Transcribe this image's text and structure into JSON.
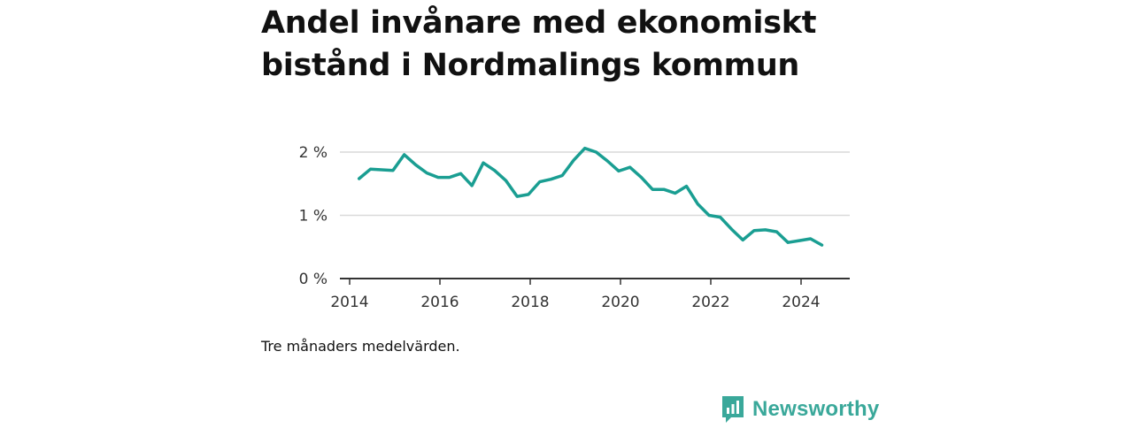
{
  "title": "Andel invånare med ekonomiskt bistånd i Nordmalings kommun",
  "caption": "Tre månaders medelvärden.",
  "brand": {
    "name": "Newsworthy",
    "icon": "newsworthy-logo-icon",
    "color": "#3aa89a"
  },
  "colors": {
    "line": "#1a9e92",
    "grid": "#d9d9d9",
    "axis": "#333333",
    "text": "#333333"
  },
  "chart_data": {
    "type": "line",
    "title": "Andel invånare med ekonomiskt bistånd i Nordmalings kommun",
    "xlabel": "",
    "ylabel": "",
    "xlim": [
      2013.7,
      2025.1
    ],
    "ylim": [
      0,
      2
    ],
    "x_ticks": [
      2014,
      2016,
      2018,
      2020,
      2022,
      2024
    ],
    "y_ticks": [
      0,
      1,
      2
    ],
    "y_tick_labels": [
      "0 %",
      "1 %",
      "2 %"
    ],
    "grid": true,
    "series": [
      {
        "values": [
          [
            2014.21,
            1.58
          ],
          [
            2014.46,
            1.73
          ],
          [
            2014.71,
            1.72
          ],
          [
            2014.96,
            1.71
          ],
          [
            2015.21,
            1.96
          ],
          [
            2015.46,
            1.8
          ],
          [
            2015.71,
            1.67
          ],
          [
            2015.96,
            1.6
          ],
          [
            2016.21,
            1.6
          ],
          [
            2016.46,
            1.66
          ],
          [
            2016.71,
            1.47
          ],
          [
            2016.96,
            1.83
          ],
          [
            2017.21,
            1.71
          ],
          [
            2017.46,
            1.55
          ],
          [
            2017.71,
            1.3
          ],
          [
            2017.96,
            1.33
          ],
          [
            2018.21,
            1.53
          ],
          [
            2018.46,
            1.57
          ],
          [
            2018.71,
            1.63
          ],
          [
            2018.96,
            1.87
          ],
          [
            2019.21,
            2.06
          ],
          [
            2019.46,
            2.0
          ],
          [
            2019.71,
            1.86
          ],
          [
            2019.96,
            1.7
          ],
          [
            2020.21,
            1.76
          ],
          [
            2020.46,
            1.6
          ],
          [
            2020.71,
            1.41
          ],
          [
            2020.96,
            1.41
          ],
          [
            2021.21,
            1.35
          ],
          [
            2021.46,
            1.46
          ],
          [
            2021.71,
            1.18
          ],
          [
            2021.96,
            1.0
          ],
          [
            2022.21,
            0.97
          ],
          [
            2022.46,
            0.78
          ],
          [
            2022.71,
            0.61
          ],
          [
            2022.96,
            0.76
          ],
          [
            2023.21,
            0.77
          ],
          [
            2023.46,
            0.74
          ],
          [
            2023.71,
            0.57
          ],
          [
            2023.96,
            0.6
          ],
          [
            2024.21,
            0.63
          ],
          [
            2024.46,
            0.53
          ]
        ]
      }
    ]
  }
}
